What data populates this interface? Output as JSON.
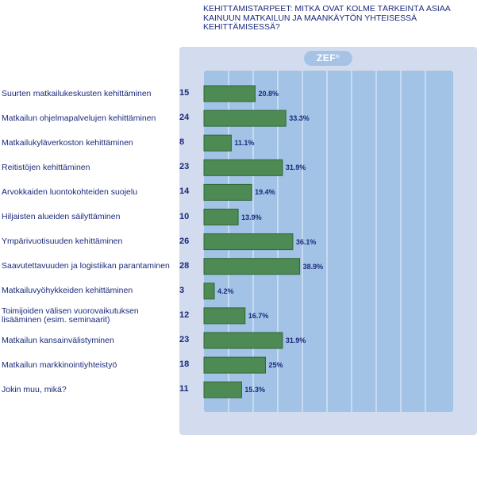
{
  "chart_data": {
    "type": "bar",
    "orientation": "horizontal",
    "title": "KEHITTÄMISTARPEET: MITKÄ OVAT KOLME TÄRKEINTÄ ASIAA\nKAINUUN MATKAILUN JA MAANKÄYTÖN YHTEISESSÄ\nKEHITTÄMISESSÄ?",
    "badge": "ZEF",
    "badge_mark": "®",
    "xlim": [
      0,
      100
    ],
    "grid": true,
    "categories": [
      "Suurten matkailukeskusten kehittäminen",
      "Matkailun ohjelmapalvelujen kehittäminen",
      "Matkailukyläverkoston kehittäminen",
      "Reitistöjen kehittäminen",
      "Arvokkaiden luontokohteiden suojelu",
      "Hiljaisten alueiden säilyttäminen",
      "Ympärivuotisuuden kehittäminen",
      "Saavutettavuuden ja logistiikan parantaminen",
      "Matkailuvyöhykkeiden kehittäminen",
      "Toimijoiden välisen vuorovaikutuksen lisääminen (esim. seminaarit)",
      "Matkailun kansainvälistyminen",
      "Matkailun markkinointiyhteistyö",
      "Jokin muu, mikä?"
    ],
    "counts": [
      15,
      24,
      8,
      23,
      14,
      10,
      26,
      28,
      3,
      12,
      23,
      18,
      11
    ],
    "values": [
      20.8,
      33.3,
      11.1,
      31.9,
      19.4,
      13.9,
      36.1,
      38.9,
      4.2,
      16.7,
      31.9,
      25,
      15.3
    ],
    "value_labels": [
      "20.8%",
      "33.3%",
      "11.1%",
      "31.9%",
      "19.4%",
      "13.9%",
      "36.1%",
      "38.9%",
      "4.2%",
      "16.7%",
      "31.9%",
      "25%",
      "15.3%"
    ],
    "colors": {
      "bar": "#4e8a54",
      "bar_edge": "#2f6636",
      "grid": "#c6dbf1",
      "text": "#1b2a7a"
    }
  }
}
